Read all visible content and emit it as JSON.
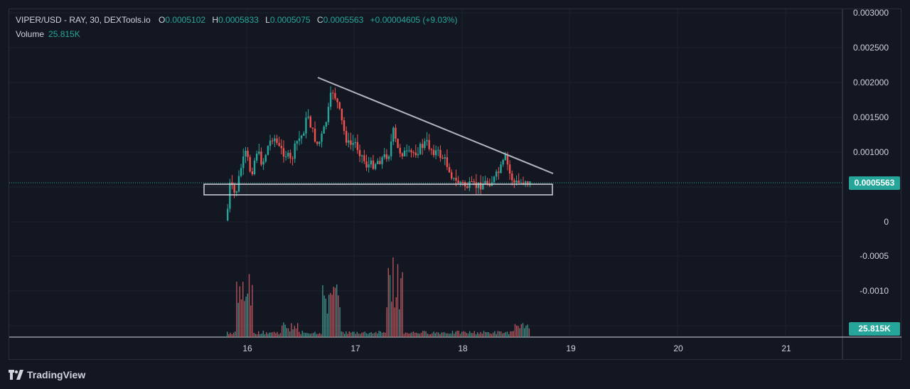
{
  "header": {
    "symbol": "VIPER/USD - RAY, 30, DEXTools.io",
    "o_label": "O",
    "o_value": "0.0005102",
    "h_label": "H",
    "h_value": "0.0005833",
    "l_label": "L",
    "l_value": "0.0005075",
    "c_label": "C",
    "c_value": "0.0005563",
    "change": "+0.00004605 (+9.03%)"
  },
  "volume": {
    "label": "Volume",
    "value": "25.815K"
  },
  "y_axis": [
    "0.003000",
    "0.002500",
    "0.002000",
    "0.001500",
    "0.001000",
    "0",
    "-0.0005",
    "-0.0010"
  ],
  "x_axis": [
    "16",
    "17",
    "18",
    "19",
    "20",
    "21"
  ],
  "price_badge": "0.0005563",
  "volume_badge": "25.815K",
  "brand": "TradingView",
  "colors": {
    "background": "#131722",
    "up": "#26a69a",
    "down": "#ef5350",
    "grid": "#1e222d",
    "trendline": "#b2b5be",
    "badge": "#26a69a"
  }
}
